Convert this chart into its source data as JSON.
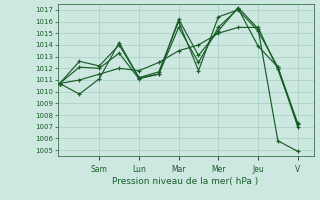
{
  "xlabel": "Pression niveau de la mer( hPa )",
  "background_color": "#cce8e0",
  "grid_color": "#99ccbb",
  "line_color": "#1a5c28",
  "ylim_min": 1004.5,
  "ylim_max": 1017.5,
  "yticks": [
    1005,
    1006,
    1007,
    1008,
    1009,
    1010,
    1011,
    1012,
    1013,
    1014,
    1015,
    1016,
    1017
  ],
  "day_labels": [
    "Sam",
    "Lun",
    "Mar",
    "Mer",
    "Jeu",
    "V"
  ],
  "day_positions": [
    2.0,
    4.0,
    6.0,
    8.0,
    10.0,
    12.0
  ],
  "xlim_min": -0.1,
  "xlim_max": 12.8,
  "series": [
    {
      "x": [
        0,
        1,
        2,
        3,
        4,
        5,
        6,
        7,
        8,
        9,
        10,
        11,
        12
      ],
      "y": [
        1010.7,
        1009.8,
        1011.1,
        1014.2,
        1011.2,
        1011.5,
        1016.2,
        1013.1,
        1015.2,
        1017.2,
        1015.4,
        1005.8,
        1004.9
      ]
    },
    {
      "x": [
        0,
        1,
        2,
        3,
        4,
        5,
        6,
        7,
        8,
        9,
        10,
        11,
        12
      ],
      "y": [
        1010.7,
        1011.0,
        1011.5,
        1012.0,
        1011.8,
        1012.5,
        1013.5,
        1014.0,
        1015.0,
        1015.5,
        1015.5,
        1011.9,
        1007.2
      ]
    },
    {
      "x": [
        0,
        1,
        2,
        3,
        4,
        5,
        6,
        7,
        8,
        9,
        10,
        11,
        12
      ],
      "y": [
        1010.7,
        1012.6,
        1012.2,
        1014.0,
        1011.2,
        1011.7,
        1016.0,
        1011.8,
        1016.4,
        1017.0,
        1015.2,
        1012.1,
        1007.0
      ]
    },
    {
      "x": [
        0,
        1,
        2,
        3,
        4,
        5,
        6,
        7,
        8,
        9,
        10,
        11,
        12
      ],
      "y": [
        1010.7,
        1012.1,
        1012.0,
        1013.3,
        1011.1,
        1011.5,
        1015.5,
        1012.5,
        1015.5,
        1017.1,
        1013.9,
        1012.1,
        1007.3
      ]
    }
  ]
}
